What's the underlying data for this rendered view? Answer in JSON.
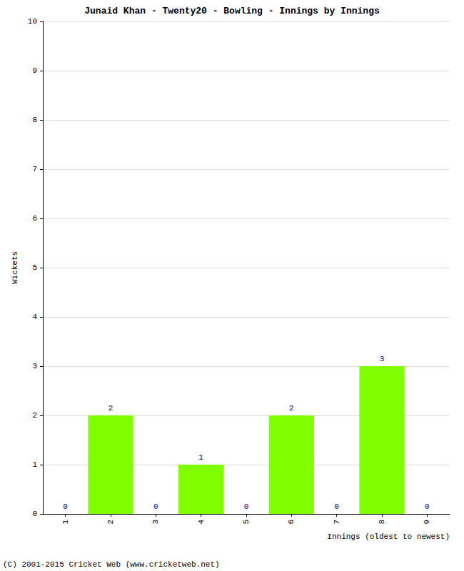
{
  "chart_data": {
    "type": "bar",
    "title": "Junaid Khan - Twenty20 - Bowling - Innings by Innings",
    "x_label": "Innings (oldest to newest)",
    "y_label": "Wickets",
    "categories": [
      "1",
      "2",
      "3",
      "4",
      "5",
      "6",
      "7",
      "8",
      "9"
    ],
    "values": [
      0,
      2,
      0,
      1,
      0,
      2,
      0,
      3,
      0
    ],
    "color": "#80ff00",
    "ylim": [
      0,
      10
    ],
    "yticks": [
      0,
      1,
      2,
      3,
      4,
      5,
      6,
      7,
      8,
      9,
      10
    ],
    "grid": true,
    "data_labels": true,
    "annotations": [
      "(C) 2001-2015 Cricket Web (www.cricketweb.net)"
    ]
  }
}
